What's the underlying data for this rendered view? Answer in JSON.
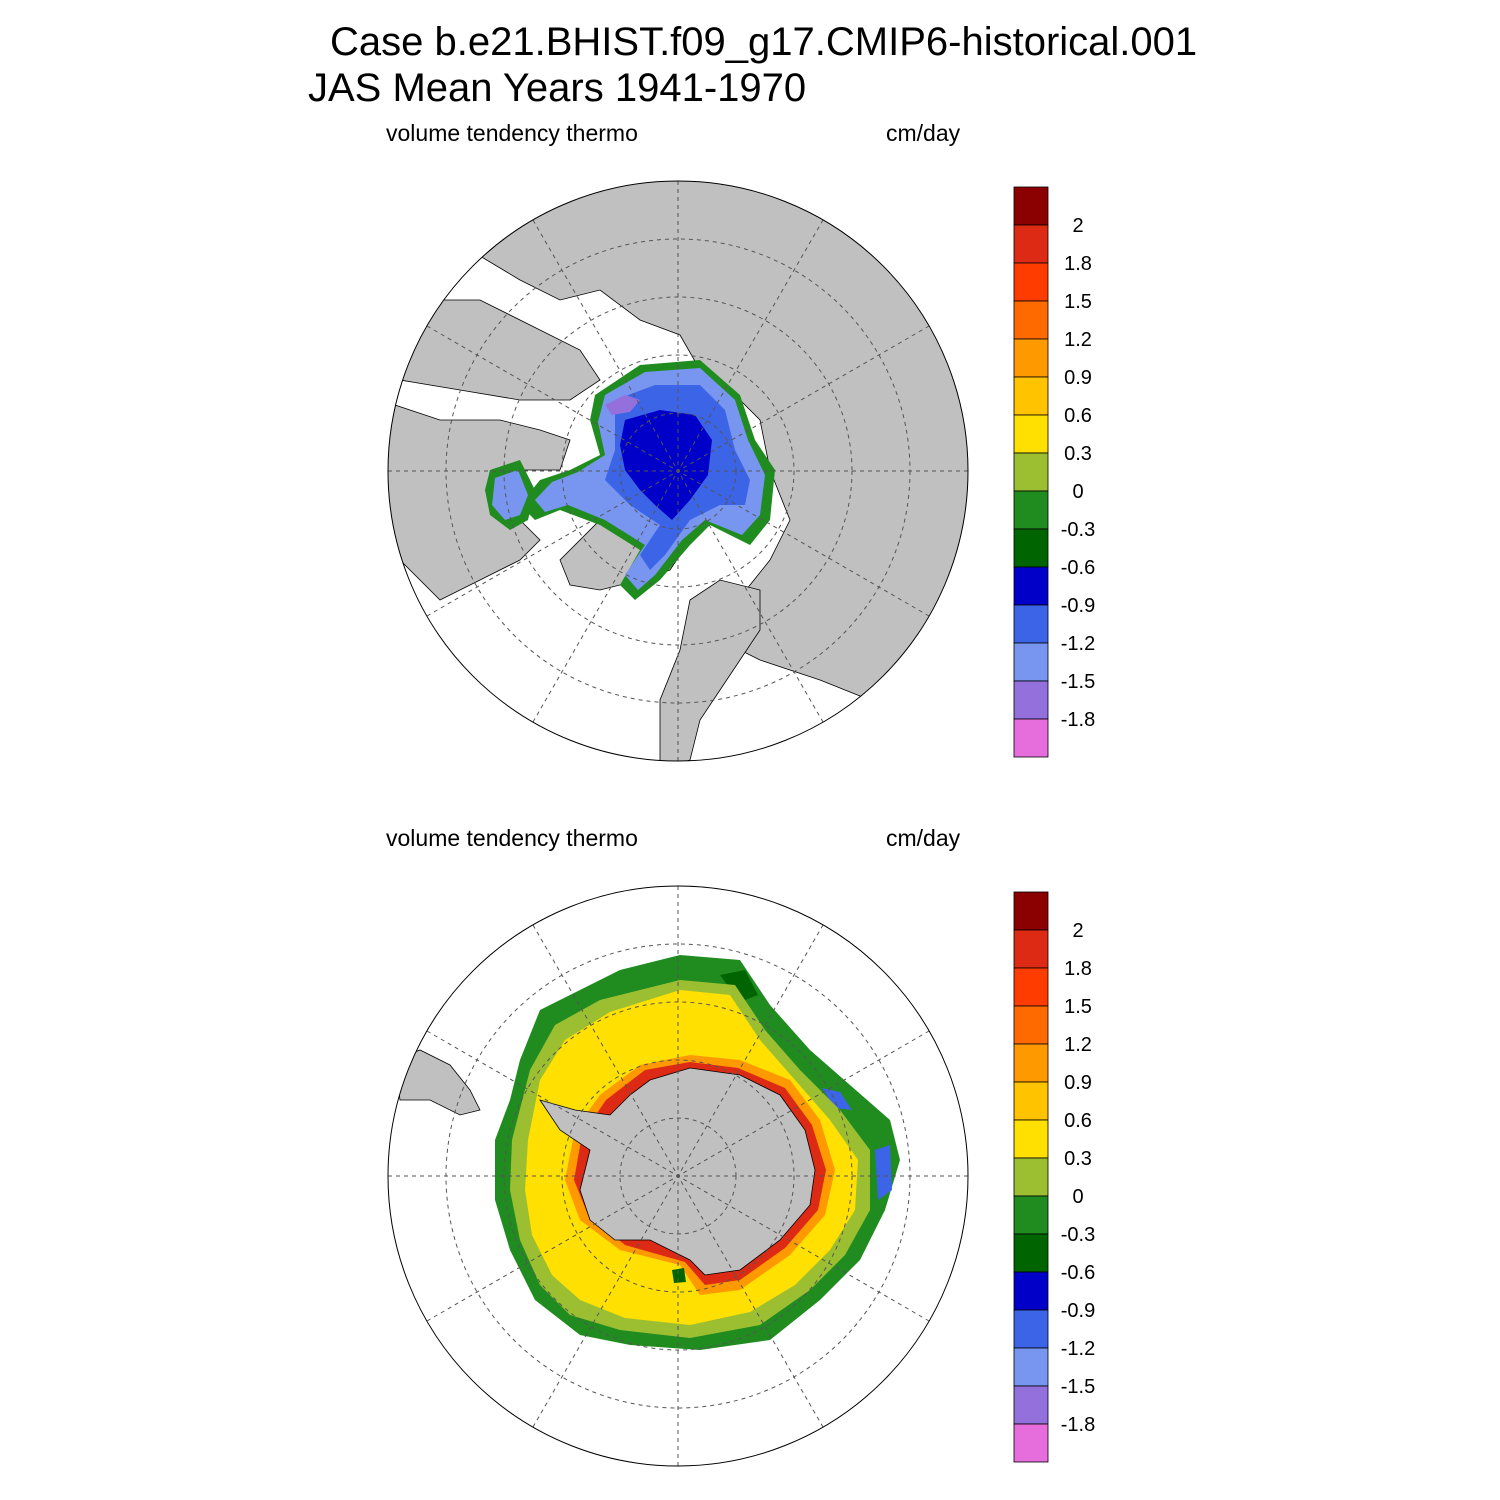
{
  "header": {
    "case_line": "Case b.e21.BHIST.f09_g17.CMIP6-historical.001",
    "period_line": "JAS Mean   Years 1941-1970"
  },
  "panels": [
    {
      "hemisphere": "north",
      "variable_label": "volume tendency thermo",
      "units_label": "cm/day"
    },
    {
      "hemisphere": "south",
      "variable_label": "volume tendency thermo",
      "units_label": "cm/day"
    }
  ],
  "colorbar": {
    "levels": [
      "2",
      "1.8",
      "1.5",
      "1.2",
      "0.9",
      "0.6",
      "0.3",
      "0",
      "-0.3",
      "-0.6",
      "-0.9",
      "-1.2",
      "-1.5",
      "-1.8"
    ],
    "colors": [
      "#8b0000",
      "#dd2a14",
      "#ff3c00",
      "#ff6a00",
      "#ff9900",
      "#ffc300",
      "#ffe000",
      "#9cbf32",
      "#208c20",
      "#006400",
      "#0000c8",
      "#3c64e6",
      "#7896f0",
      "#9370db",
      "#e66edc"
    ]
  },
  "colors": {
    "land": "#c0c0c0",
    "ocean": "#ffffff",
    "grid": "#555555"
  }
}
